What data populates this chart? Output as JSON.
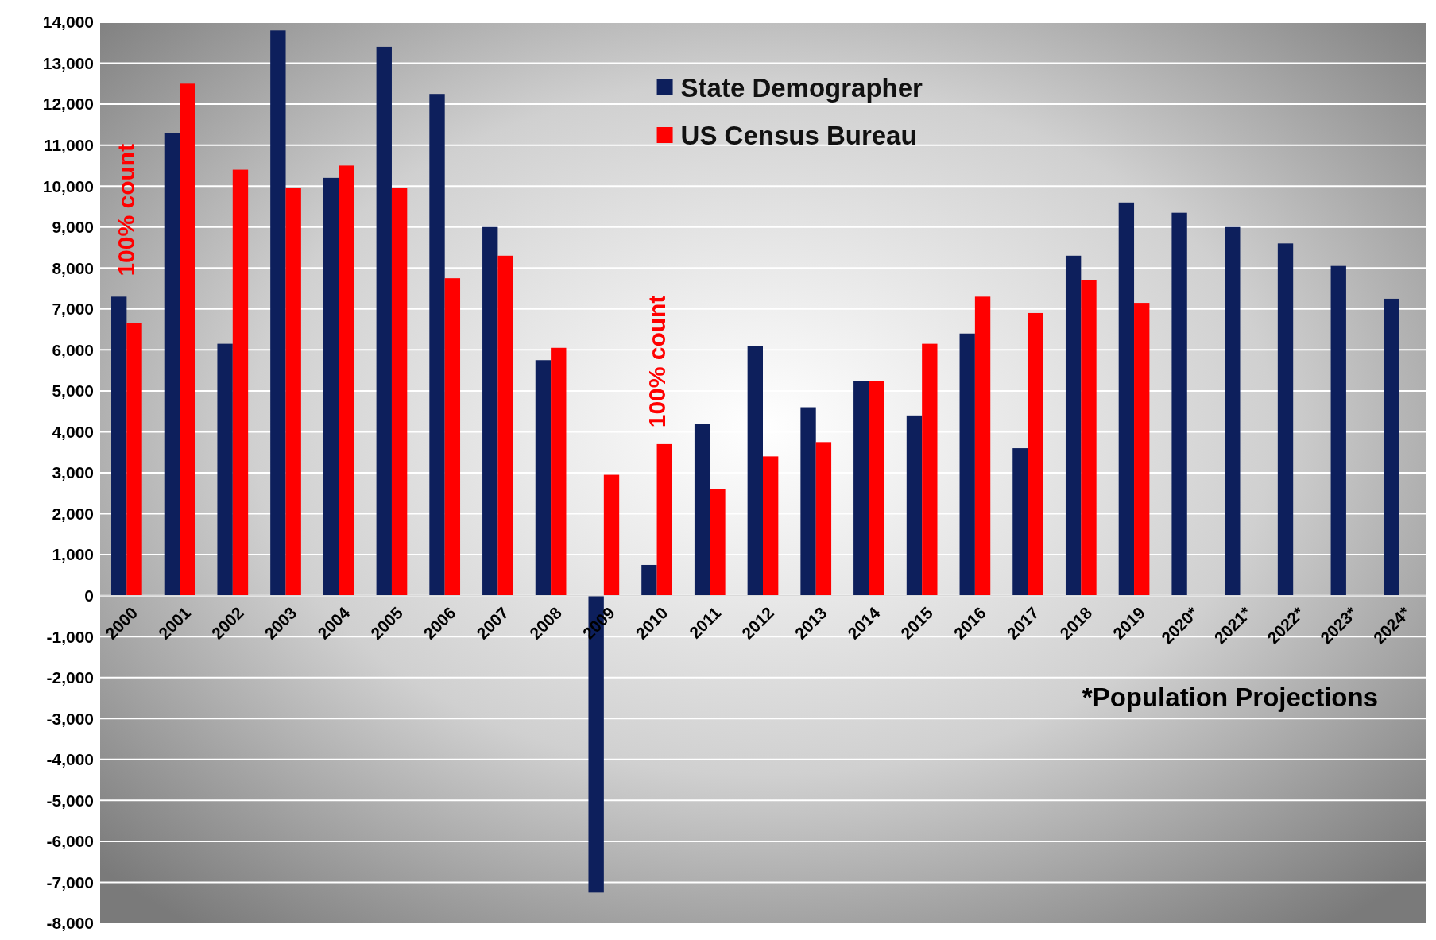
{
  "chart_data": {
    "type": "bar",
    "categories": [
      "2000",
      "2001",
      "2002",
      "2003",
      "2004",
      "2005",
      "2006",
      "2007",
      "2008",
      "2009",
      "2010",
      "2011",
      "2012",
      "2013",
      "2014",
      "2015",
      "2016",
      "2017",
      "2018",
      "2019",
      "2020*",
      "2021*",
      "2022*",
      "2023*",
      "2024*"
    ],
    "series": [
      {
        "name": "State Demographer",
        "color": "#0d1f5c",
        "values": [
          7300,
          11300,
          6150,
          13800,
          10200,
          13400,
          12250,
          9000,
          5750,
          -7250,
          750,
          4200,
          6100,
          4600,
          5250,
          4400,
          6400,
          3600,
          8300,
          9600,
          9350,
          9000,
          8600,
          8050,
          7250
        ]
      },
      {
        "name": "US Census Bureau",
        "color": "#ff0000",
        "values": [
          6650,
          12500,
          10400,
          9950,
          10500,
          9950,
          7750,
          8300,
          6050,
          2950,
          3700,
          2600,
          3400,
          3750,
          5250,
          6150,
          7300,
          6900,
          7700,
          7150,
          null,
          null,
          null,
          null,
          null
        ]
      }
    ],
    "ylim": [
      -8000,
      14000
    ],
    "yticks": [
      {
        "value": -8000,
        "label": "-8,000"
      },
      {
        "value": -7000,
        "label": "-7,000"
      },
      {
        "value": -6000,
        "label": "-6,000"
      },
      {
        "value": -5000,
        "label": "-5,000"
      },
      {
        "value": -4000,
        "label": "-4,000"
      },
      {
        "value": -3000,
        "label": "-3,000"
      },
      {
        "value": -2000,
        "label": "-2,000"
      },
      {
        "value": -1000,
        "label": "-1,000"
      },
      0,
      {
        "value": 1000,
        "label": "1,000"
      },
      {
        "value": 2000,
        "label": "2,000"
      },
      {
        "value": 3000,
        "label": "3,000"
      },
      {
        "value": 4000,
        "label": "4,000"
      },
      {
        "value": 5000,
        "label": "5,000"
      },
      {
        "value": 6000,
        "label": "6,000"
      },
      {
        "value": 7000,
        "label": "7,000"
      },
      {
        "value": 8000,
        "label": "8,000"
      },
      {
        "value": 9000,
        "label": "9,000"
      },
      {
        "value": 10000,
        "label": "10,000"
      },
      {
        "value": 11000,
        "label": "11,000"
      },
      {
        "value": 12000,
        "label": "12,000"
      },
      {
        "value": 13000,
        "label": "13,000"
      },
      {
        "value": 14000,
        "label": "14,000"
      }
    ],
    "grid": "y",
    "legend": "top",
    "annotations": [
      "100% count",
      "100% count",
      "*Population Projections"
    ]
  }
}
